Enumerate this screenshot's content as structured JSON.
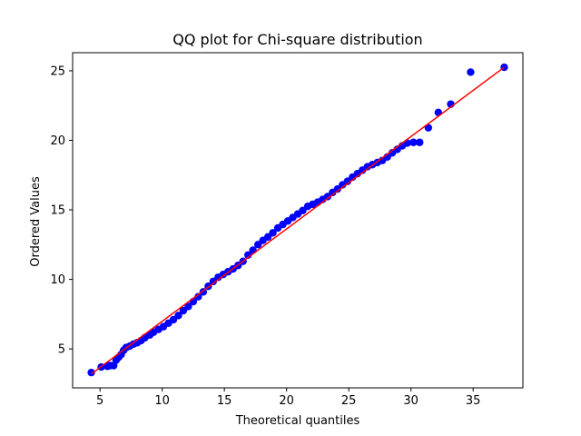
{
  "chart_data": {
    "type": "scatter",
    "title": "QQ plot for Chi-square distribution",
    "xlabel": "Theoretical quantiles",
    "ylabel": "Ordered Values",
    "xlim": [
      2.8,
      39.0
    ],
    "ylim": [
      2.2,
      26.3
    ],
    "xticks": [
      5,
      10,
      15,
      20,
      25,
      30,
      35
    ],
    "yticks": [
      5,
      10,
      15,
      20,
      25
    ],
    "grid": false,
    "series": [
      {
        "kind": "points",
        "color": "#0000ff",
        "points": [
          [
            4.3,
            3.3
          ],
          [
            5.1,
            3.7
          ],
          [
            5.6,
            3.75
          ],
          [
            5.8,
            3.8
          ],
          [
            6.1,
            3.8
          ],
          [
            6.3,
            4.2
          ],
          [
            6.5,
            4.4
          ],
          [
            6.7,
            4.6
          ],
          [
            6.9,
            4.9
          ],
          [
            7.1,
            5.1
          ],
          [
            7.4,
            5.2
          ],
          [
            7.7,
            5.35
          ],
          [
            8.0,
            5.45
          ],
          [
            8.3,
            5.6
          ],
          [
            8.6,
            5.8
          ],
          [
            9.0,
            6.0
          ],
          [
            9.3,
            6.2
          ],
          [
            9.7,
            6.4
          ],
          [
            10.1,
            6.6
          ],
          [
            10.5,
            6.85
          ],
          [
            10.9,
            7.1
          ],
          [
            11.3,
            7.4
          ],
          [
            11.7,
            7.75
          ],
          [
            12.1,
            8.05
          ],
          [
            12.5,
            8.4
          ],
          [
            12.9,
            8.75
          ],
          [
            13.3,
            9.1
          ],
          [
            13.7,
            9.5
          ],
          [
            14.1,
            9.85
          ],
          [
            14.5,
            10.15
          ],
          [
            14.9,
            10.35
          ],
          [
            15.3,
            10.55
          ],
          [
            15.7,
            10.75
          ],
          [
            16.1,
            11.0
          ],
          [
            16.5,
            11.3
          ],
          [
            16.9,
            11.75
          ],
          [
            17.3,
            12.1
          ],
          [
            17.7,
            12.5
          ],
          [
            18.1,
            12.8
          ],
          [
            18.5,
            13.05
          ],
          [
            18.9,
            13.35
          ],
          [
            19.3,
            13.7
          ],
          [
            19.7,
            13.95
          ],
          [
            20.1,
            14.2
          ],
          [
            20.5,
            14.45
          ],
          [
            20.9,
            14.7
          ],
          [
            21.3,
            14.95
          ],
          [
            21.7,
            15.25
          ],
          [
            22.1,
            15.4
          ],
          [
            22.5,
            15.55
          ],
          [
            22.9,
            15.75
          ],
          [
            23.3,
            15.95
          ],
          [
            23.7,
            16.25
          ],
          [
            24.1,
            16.5
          ],
          [
            24.5,
            16.8
          ],
          [
            24.9,
            17.05
          ],
          [
            25.3,
            17.35
          ],
          [
            25.7,
            17.6
          ],
          [
            26.1,
            17.85
          ],
          [
            26.5,
            18.1
          ],
          [
            26.9,
            18.25
          ],
          [
            27.3,
            18.4
          ],
          [
            27.7,
            18.55
          ],
          [
            28.1,
            18.8
          ],
          [
            28.5,
            19.1
          ],
          [
            28.9,
            19.35
          ],
          [
            29.3,
            19.6
          ],
          [
            29.7,
            19.8
          ],
          [
            30.2,
            19.85
          ],
          [
            30.7,
            19.85
          ],
          [
            31.4,
            20.9
          ],
          [
            32.2,
            22.0
          ],
          [
            33.2,
            22.6
          ],
          [
            34.8,
            24.9
          ],
          [
            37.5,
            25.25
          ]
        ]
      },
      {
        "kind": "line",
        "color": "#ff0000",
        "points": [
          [
            4.3,
            3.2
          ],
          [
            37.5,
            25.25
          ]
        ]
      }
    ]
  }
}
